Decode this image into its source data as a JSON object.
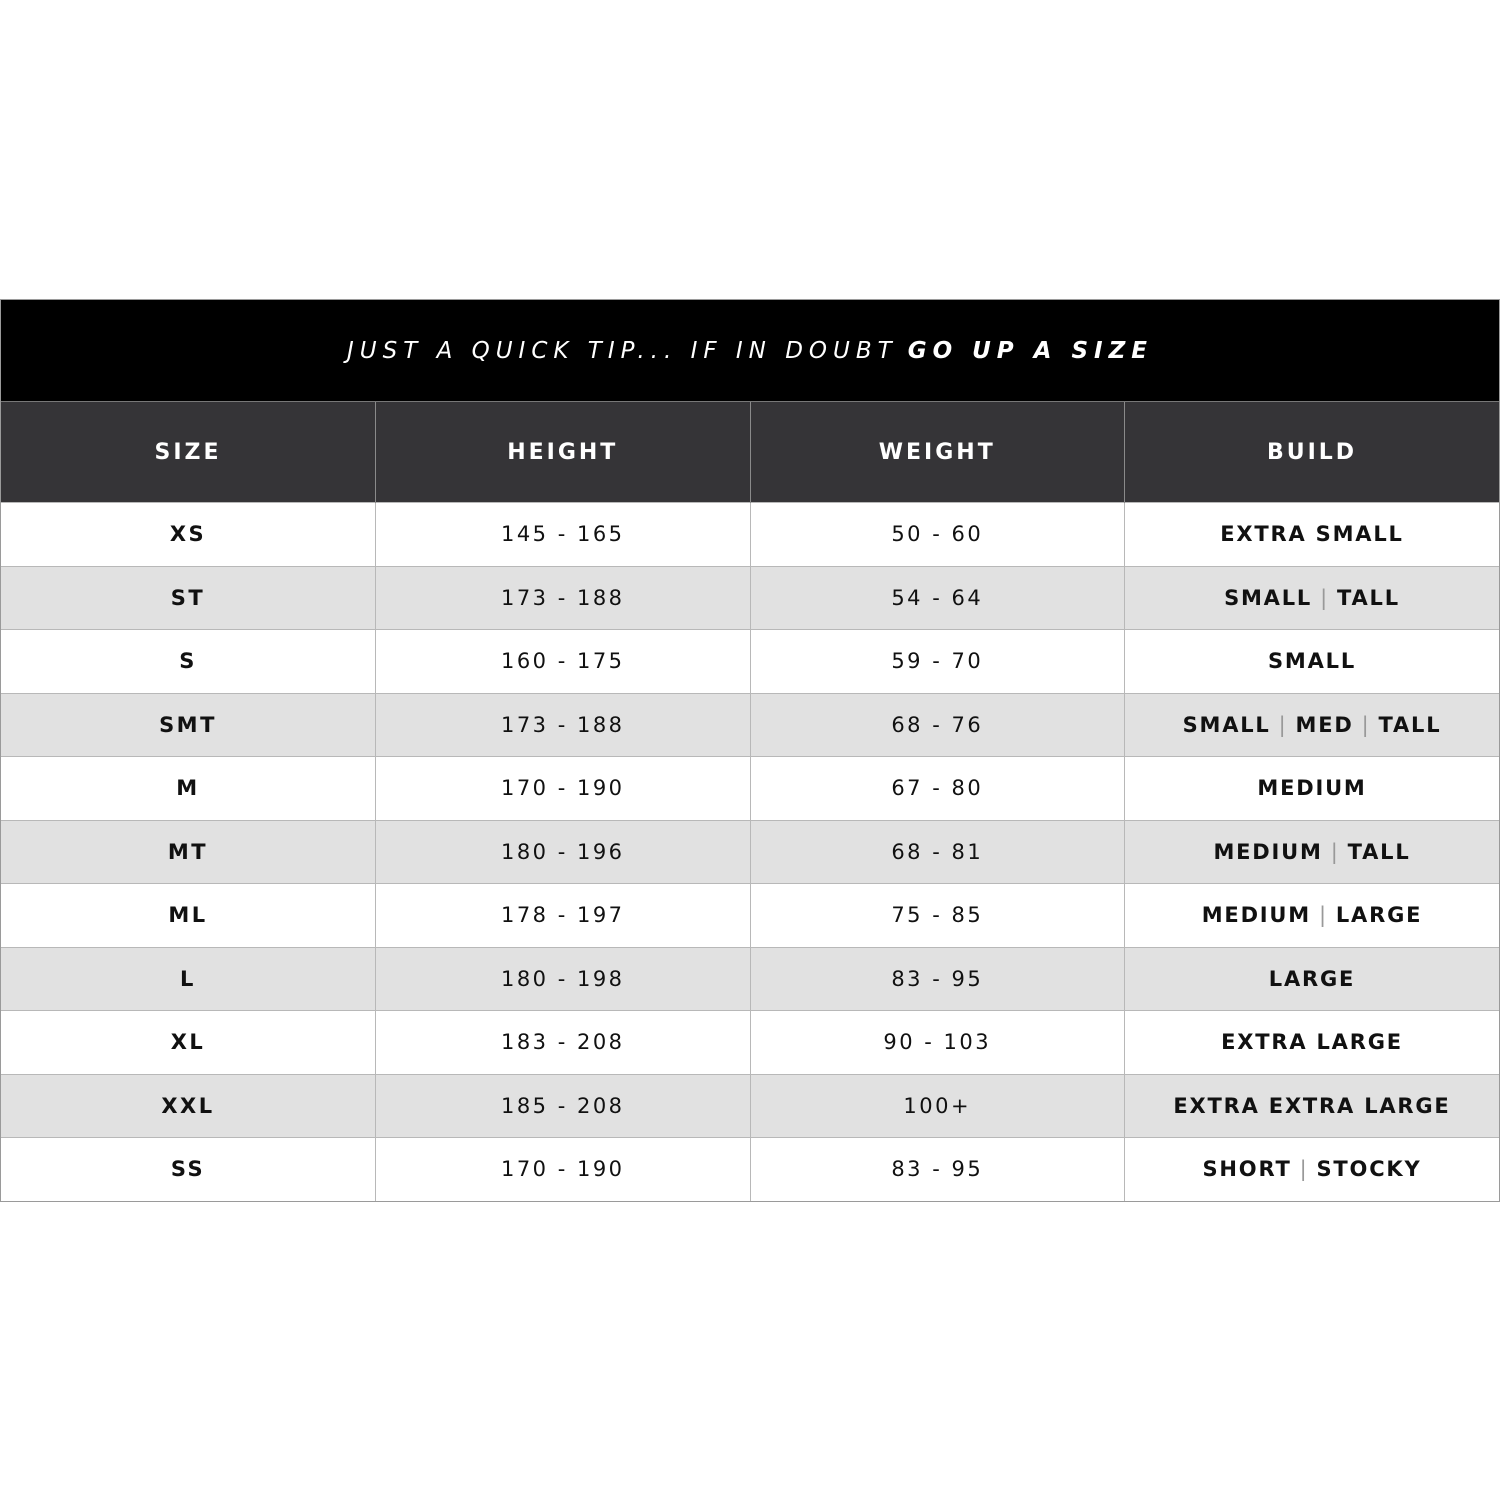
{
  "tip": {
    "lead": "JUST A QUICK TIP... IF IN DOUBT",
    "emphasis": "GO UP A SIZE"
  },
  "columns": [
    "SIZE",
    "HEIGHT",
    "WEIGHT",
    "BUILD"
  ],
  "rows": [
    {
      "size": "XS",
      "height": "145 - 165",
      "weight": "50 - 60",
      "build": [
        "EXTRA SMALL"
      ]
    },
    {
      "size": "ST",
      "height": "173 - 188",
      "weight": "54 - 64",
      "build": [
        "SMALL",
        "TALL"
      ]
    },
    {
      "size": "S",
      "height": "160 - 175",
      "weight": "59 - 70",
      "build": [
        "SMALL"
      ]
    },
    {
      "size": "SMT",
      "height": "173 - 188",
      "weight": "68 - 76",
      "build": [
        "SMALL",
        "MED",
        "TALL"
      ]
    },
    {
      "size": "M",
      "height": "170 - 190",
      "weight": "67 - 80",
      "build": [
        "MEDIUM"
      ]
    },
    {
      "size": "MT",
      "height": "180 - 196",
      "weight": "68 - 81",
      "build": [
        "MEDIUM",
        "TALL"
      ]
    },
    {
      "size": "ML",
      "height": "178 - 197",
      "weight": "75 - 85",
      "build": [
        "MEDIUM",
        "LARGE"
      ]
    },
    {
      "size": "L",
      "height": "180 - 198",
      "weight": "83 - 95",
      "build": [
        "LARGE"
      ]
    },
    {
      "size": "XL",
      "height": "183 - 208",
      "weight": "90 - 103",
      "build": [
        "EXTRA LARGE"
      ]
    },
    {
      "size": "XXL",
      "height": "185 - 208",
      "weight": "100+",
      "build": [
        "EXTRA EXTRA LARGE"
      ]
    },
    {
      "size": "SS",
      "height": "170 - 190",
      "weight": "83 - 95",
      "build": [
        "SHORT",
        "STOCKY"
      ]
    }
  ],
  "colors": {
    "banner": "#000000",
    "header": "#353437",
    "alt_row": "#e1e1e1",
    "separator": "#999999"
  }
}
